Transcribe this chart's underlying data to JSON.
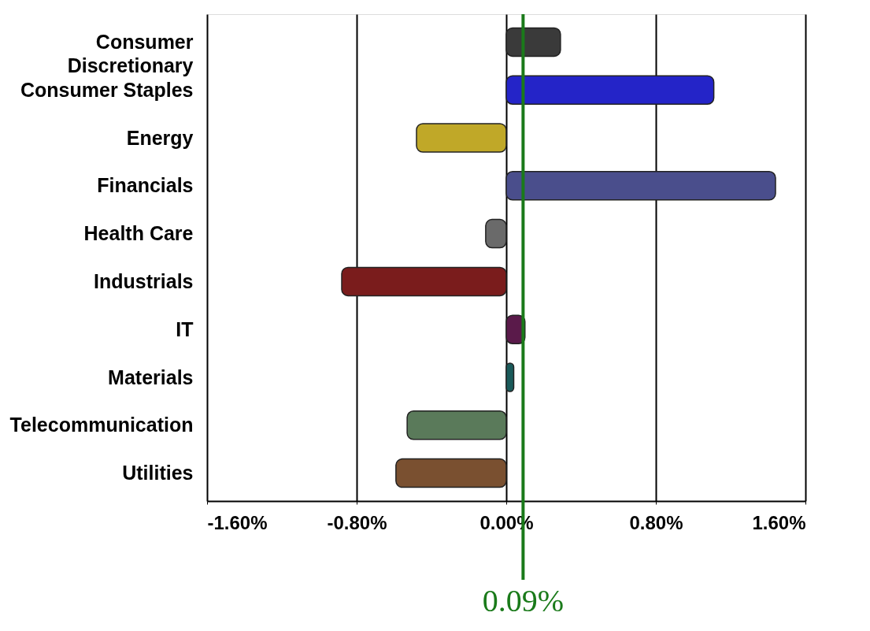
{
  "chart_data": {
    "type": "bar",
    "orientation": "horizontal",
    "categories": [
      "Consumer Discretionary",
      "Consumer Staples",
      "Energy",
      "Financials",
      "Health Care",
      "Industrials",
      "IT",
      "Materials",
      "Telecommunication",
      "Utilities"
    ],
    "values": [
      0.29,
      1.11,
      -0.48,
      1.44,
      -0.11,
      -0.88,
      0.1,
      0.04,
      -0.53,
      -0.59
    ],
    "colors": [
      "#3a3a3a",
      "#2424c8",
      "#c0a828",
      "#4a4e8c",
      "#6a6a6a",
      "#7a1c1c",
      "#5a1a4a",
      "#1a5a5a",
      "#5a7a5a",
      "#7a5030"
    ],
    "xlim": [
      -1.6,
      1.6
    ],
    "xticks": [
      {
        "value": -1.6,
        "label": "-1.60%"
      },
      {
        "value": -0.8,
        "label": "-0.80%"
      },
      {
        "value": 0,
        "label": "0.00%"
      },
      {
        "value": 0.8,
        "label": "0.80%"
      },
      {
        "value": 1.6,
        "label": "1.60%"
      }
    ],
    "grid": "x",
    "ref_lines": [
      {
        "axis": "x",
        "value": 0.09,
        "label": "0.09%",
        "color": "#1a7a1a"
      }
    ]
  }
}
